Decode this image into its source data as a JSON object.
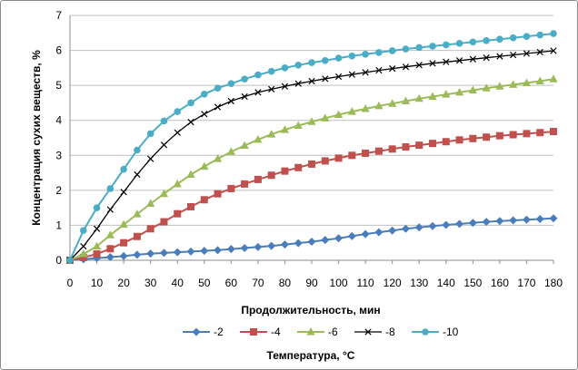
{
  "chart_data": {
    "type": "line",
    "xlabel": "Продолжительность, мин",
    "ylabel": "Концентрация сухих веществ, %",
    "legend_title": "Температура, °C",
    "legend_position": "bottom",
    "grid": true,
    "xlim": [
      0,
      180
    ],
    "ylim": [
      0,
      7
    ],
    "x_ticks": [
      "0",
      "10",
      "20",
      "30",
      "40",
      "50",
      "60",
      "70",
      "80",
      "90",
      "100",
      "110",
      "120",
      "130",
      "140",
      "150",
      "160",
      "170",
      "180"
    ],
    "y_ticks": [
      "0",
      "1",
      "2",
      "3",
      "4",
      "5",
      "6",
      "7"
    ],
    "x": [
      0,
      5,
      10,
      15,
      20,
      25,
      30,
      35,
      40,
      45,
      50,
      55,
      60,
      65,
      70,
      75,
      80,
      85,
      90,
      95,
      100,
      105,
      110,
      115,
      120,
      125,
      130,
      135,
      140,
      145,
      150,
      155,
      160,
      165,
      170,
      175,
      180
    ],
    "series": [
      {
        "name": "-2",
        "color": "#4A7EBB",
        "marker": "diamond",
        "values": [
          0,
          0.03,
          0.06,
          0.09,
          0.12,
          0.16,
          0.19,
          0.21,
          0.23,
          0.25,
          0.27,
          0.29,
          0.32,
          0.35,
          0.38,
          0.41,
          0.45,
          0.49,
          0.53,
          0.58,
          0.63,
          0.69,
          0.75,
          0.8,
          0.85,
          0.9,
          0.94,
          0.98,
          1.01,
          1.04,
          1.07,
          1.1,
          1.12,
          1.14,
          1.16,
          1.18,
          1.2
        ]
      },
      {
        "name": "-4",
        "color": "#C0504D",
        "marker": "square",
        "values": [
          0,
          0.08,
          0.18,
          0.33,
          0.5,
          0.68,
          0.9,
          1.1,
          1.33,
          1.53,
          1.73,
          1.9,
          2.05,
          2.18,
          2.31,
          2.43,
          2.55,
          2.65,
          2.75,
          2.84,
          2.92,
          3.0,
          3.06,
          3.12,
          3.18,
          3.24,
          3.29,
          3.34,
          3.39,
          3.44,
          3.48,
          3.52,
          3.56,
          3.59,
          3.62,
          3.65,
          3.68
        ]
      },
      {
        "name": "-6",
        "color": "#9BBB59",
        "marker": "triangle",
        "values": [
          0,
          0.18,
          0.4,
          0.72,
          1.02,
          1.32,
          1.62,
          1.9,
          2.18,
          2.45,
          2.68,
          2.9,
          3.1,
          3.28,
          3.45,
          3.6,
          3.73,
          3.85,
          3.96,
          4.06,
          4.16,
          4.25,
          4.33,
          4.41,
          4.48,
          4.55,
          4.62,
          4.68,
          4.74,
          4.8,
          4.86,
          4.92,
          4.97,
          5.02,
          5.07,
          5.12,
          5.18
        ]
      },
      {
        "name": "-8",
        "color": "#000000",
        "marker": "x",
        "values": [
          0,
          0.4,
          0.9,
          1.45,
          1.95,
          2.45,
          2.9,
          3.3,
          3.65,
          3.95,
          4.18,
          4.38,
          4.55,
          4.68,
          4.8,
          4.89,
          4.97,
          5.05,
          5.12,
          5.19,
          5.25,
          5.31,
          5.37,
          5.43,
          5.48,
          5.53,
          5.58,
          5.63,
          5.67,
          5.71,
          5.75,
          5.79,
          5.83,
          5.87,
          5.91,
          5.95,
          5.99
        ]
      },
      {
        "name": "-10",
        "color": "#4BACC6",
        "marker": "circle",
        "values": [
          0,
          0.85,
          1.5,
          2.05,
          2.6,
          3.15,
          3.62,
          3.98,
          4.25,
          4.5,
          4.75,
          4.92,
          5.05,
          5.18,
          5.3,
          5.4,
          5.5,
          5.58,
          5.65,
          5.71,
          5.78,
          5.84,
          5.89,
          5.94,
          5.99,
          6.04,
          6.08,
          6.12,
          6.16,
          6.2,
          6.24,
          6.28,
          6.32,
          6.36,
          6.4,
          6.44,
          6.48
        ]
      }
    ]
  }
}
